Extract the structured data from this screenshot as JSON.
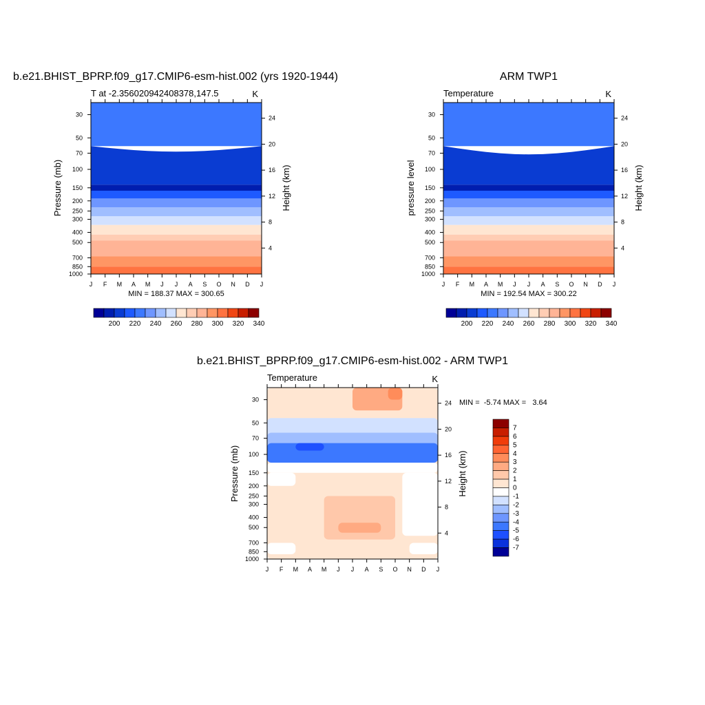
{
  "chart_data": [
    {
      "type": "heatmap",
      "id": "model",
      "title": "b.e21.BHIST_BPRP.f09_g17.CMIP6-esm-hist.002 (yrs 1920-1944)",
      "left_label": "T at -2.356020942408378,147.5",
      "right_label": "K",
      "xlabel": "",
      "ylabel": "Pressure (mb)",
      "y2label": "Height (km)",
      "x_ticks": [
        "J",
        "F",
        "M",
        "A",
        "M",
        "J",
        "J",
        "A",
        "S",
        "O",
        "N",
        "D",
        "J"
      ],
      "y_ticks": [
        30,
        50,
        70,
        100,
        150,
        200,
        250,
        300,
        400,
        500,
        700,
        850,
        1000
      ],
      "y2_ticks": [
        24,
        20,
        16,
        12,
        8,
        4
      ],
      "ylim": [
        1000,
        23
      ],
      "stats": "MIN = 188.37 MAX = 300.65",
      "fill_levels": [
        {
          "p": 30,
          "v": 220,
          "shift": 0
        },
        {
          "p": 60,
          "v": 200,
          "shift": 8
        },
        {
          "p": 140,
          "v": 190,
          "shift": 0
        },
        {
          "p": 160,
          "v": 210,
          "shift": 0
        },
        {
          "p": 190,
          "v": 230,
          "shift": 0
        },
        {
          "p": 230,
          "v": 240,
          "shift": 0
        },
        {
          "p": 280,
          "v": 250,
          "shift": 0
        },
        {
          "p": 340,
          "v": 260,
          "shift": 0
        },
        {
          "p": 420,
          "v": 270,
          "shift": 0
        },
        {
          "p": 480,
          "v": 280,
          "shift": 0
        },
        {
          "p": 680,
          "v": 290,
          "shift": 0
        },
        {
          "p": 850,
          "v": 300,
          "shift": 0
        }
      ]
    },
    {
      "type": "heatmap",
      "id": "obs",
      "title": "ARM TWP1",
      "left_label": "Temperature",
      "right_label": "K",
      "xlabel": "",
      "ylabel": "pressure level",
      "y2label": "Height (km)",
      "x_ticks": [
        "J",
        "F",
        "M",
        "A",
        "M",
        "J",
        "J",
        "A",
        "S",
        "O",
        "N",
        "D",
        "J"
      ],
      "y_ticks": [
        30,
        50,
        70,
        100,
        150,
        200,
        250,
        300,
        400,
        500,
        700,
        850,
        1000
      ],
      "y2_ticks": [
        24,
        20,
        16,
        12,
        8,
        4
      ],
      "ylim": [
        1000,
        23
      ],
      "stats": "MIN = 192.54 MAX = 300.22",
      "fill_levels": [
        {
          "p": 30,
          "v": 220,
          "shift": 0
        },
        {
          "p": 60,
          "v": 200,
          "shift": 12
        },
        {
          "p": 140,
          "v": 190,
          "shift": 0
        },
        {
          "p": 160,
          "v": 210,
          "shift": 0
        },
        {
          "p": 190,
          "v": 230,
          "shift": 0
        },
        {
          "p": 230,
          "v": 240,
          "shift": 0
        },
        {
          "p": 280,
          "v": 250,
          "shift": 0
        },
        {
          "p": 340,
          "v": 260,
          "shift": 0
        },
        {
          "p": 420,
          "v": 270,
          "shift": 0
        },
        {
          "p": 480,
          "v": 280,
          "shift": 0
        },
        {
          "p": 680,
          "v": 290,
          "shift": 0
        },
        {
          "p": 850,
          "v": 300,
          "shift": 0
        }
      ]
    },
    {
      "type": "heatmap",
      "id": "diff",
      "title": "b.e21.BHIST_BPRP.f09_g17.CMIP6-esm-hist.002 - ARM TWP1",
      "left_label": "Temperature",
      "right_label": "K",
      "xlabel": "",
      "ylabel": "Pressure (mb)",
      "y2label": "Height (km)",
      "x_ticks": [
        "J",
        "F",
        "M",
        "A",
        "M",
        "J",
        "J",
        "A",
        "S",
        "O",
        "N",
        "D",
        "J"
      ],
      "y_ticks": [
        30,
        50,
        70,
        100,
        150,
        200,
        250,
        300,
        400,
        500,
        700,
        850,
        1000
      ],
      "y2_ticks": [
        24,
        20,
        16,
        12,
        8,
        4
      ],
      "ylim": [
        1000,
        23
      ],
      "stats": "MIN =  -5.74 MAX =   3.64",
      "regions": [
        {
          "months": [
            0,
            12
          ],
          "p": [
            23,
            1000
          ],
          "v": 0.5
        },
        {
          "months": [
            6,
            9.5
          ],
          "p": [
            23,
            38
          ],
          "v": 2.5
        },
        {
          "months": [
            8.5,
            9.5
          ],
          "p": [
            23,
            30
          ],
          "v": 3.5
        },
        {
          "months": [
            0,
            12
          ],
          "p": [
            45,
            70
          ],
          "v": -1.5
        },
        {
          "months": [
            0,
            12
          ],
          "p": [
            62,
            85
          ],
          "v": -2.5
        },
        {
          "months": [
            0,
            12
          ],
          "p": [
            78,
            120
          ],
          "v": -4.5
        },
        {
          "months": [
            2,
            4
          ],
          "p": [
            78,
            92
          ],
          "v": -5.5
        },
        {
          "months": [
            0,
            12
          ],
          "p": [
            120,
            150
          ],
          "v": -0.5
        },
        {
          "months": [
            9.5,
            12
          ],
          "p": [
            150,
            600
          ],
          "v": -0.5
        },
        {
          "months": [
            0,
            2
          ],
          "p": [
            150,
            200
          ],
          "v": -0.5
        },
        {
          "months": [
            4,
            9
          ],
          "p": [
            250,
            650
          ],
          "v": 1.5
        },
        {
          "months": [
            5,
            8
          ],
          "p": [
            450,
            560
          ],
          "v": 2.5
        },
        {
          "months": [
            0,
            2
          ],
          "p": [
            700,
            900
          ],
          "v": -0.5
        },
        {
          "months": [
            10,
            12
          ],
          "p": [
            700,
            900
          ],
          "v": -0.5
        }
      ]
    }
  ],
  "colorbar_temp": {
    "labels": [
      "200",
      "220",
      "240",
      "260",
      "280",
      "300",
      "320",
      "340"
    ],
    "colors": [
      "#000096",
      "#001eaf",
      "#0a3cd2",
      "#1e5aff",
      "#3c78ff",
      "#6e96ff",
      "#a0beff",
      "#d2e1ff",
      "#ffe6d2",
      "#ffcdb4",
      "#ffb496",
      "#ff9664",
      "#ff7341",
      "#f04614",
      "#c81e00",
      "#8c0000"
    ]
  },
  "colorbar_diff": {
    "labels": [
      "7",
      "6",
      "5",
      "4",
      "3",
      "2",
      "1",
      "0",
      "-1",
      "-2",
      "-3",
      "-4",
      "-5",
      "-6",
      "-7"
    ],
    "colors": [
      "#8c0000",
      "#c81e00",
      "#f03c0a",
      "#ff6432",
      "#ff8c5a",
      "#ffaa82",
      "#ffc8aa",
      "#ffe6d2",
      "#ffffff",
      "#d2e1ff",
      "#a0beff",
      "#6e96ff",
      "#3c78ff",
      "#1e50ff",
      "#0a32dc",
      "#000096"
    ]
  }
}
